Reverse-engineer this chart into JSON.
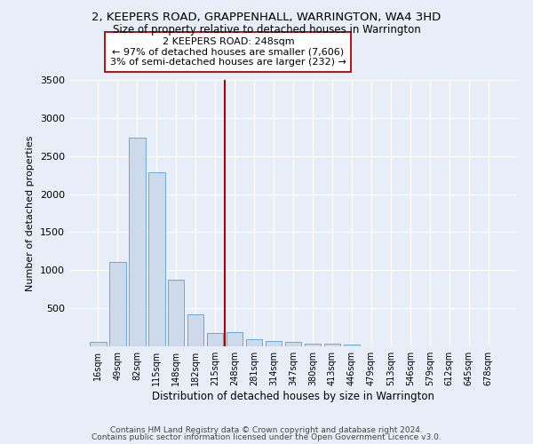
{
  "title": "2, KEEPERS ROAD, GRAPPENHALL, WARRINGTON, WA4 3HD",
  "subtitle": "Size of property relative to detached houses in Warrington",
  "xlabel": "Distribution of detached houses by size in Warrington",
  "ylabel": "Number of detached properties",
  "bar_color": "#ccdaeb",
  "bar_edge_color": "#6aaad4",
  "background_color": "#e8eef8",
  "grid_color": "#ffffff",
  "categories": [
    "16sqm",
    "49sqm",
    "82sqm",
    "115sqm",
    "148sqm",
    "182sqm",
    "215sqm",
    "248sqm",
    "281sqm",
    "314sqm",
    "347sqm",
    "380sqm",
    "413sqm",
    "446sqm",
    "479sqm",
    "513sqm",
    "546sqm",
    "579sqm",
    "612sqm",
    "645sqm",
    "678sqm"
  ],
  "values": [
    55,
    1105,
    2740,
    2285,
    875,
    425,
    175,
    185,
    95,
    65,
    55,
    40,
    30,
    20,
    5,
    5,
    5,
    5,
    5,
    5,
    5
  ],
  "vline_x": 6.5,
  "vline_color": "#aa0000",
  "annotation_text": "2 KEEPERS ROAD: 248sqm\n← 97% of detached houses are smaller (7,606)\n3% of semi-detached houses are larger (232) →",
  "annotation_box_color": "#ffffff",
  "annotation_box_edge": "#aa0000",
  "ylim": [
    0,
    3500
  ],
  "yticks": [
    0,
    500,
    1000,
    1500,
    2000,
    2500,
    3000,
    3500
  ],
  "footnote1": "Contains HM Land Registry data © Crown copyright and database right 2024.",
  "footnote2": "Contains public sector information licensed under the Open Government Licence v3.0."
}
